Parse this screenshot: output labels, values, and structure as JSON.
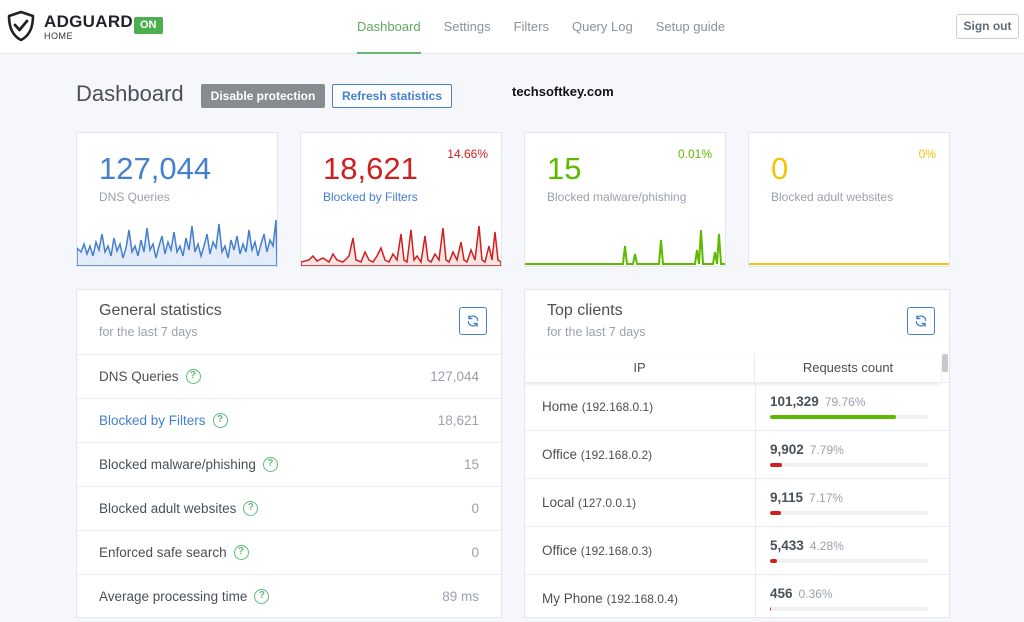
{
  "header": {
    "brand": "ADGUARD",
    "brand_sub": "HOME",
    "status_badge": "ON",
    "nav": [
      "Dashboard",
      "Settings",
      "Filters",
      "Query Log",
      "Setup guide"
    ],
    "signout": "Sign out"
  },
  "page": {
    "title": "Dashboard",
    "disable_btn": "Disable protection",
    "refresh_btn": "Refresh statistics",
    "watermark": "techsoftkey.com"
  },
  "cards": [
    {
      "value": "127,044",
      "label": "DNS Queries",
      "percent": "",
      "color": "#467fcf"
    },
    {
      "value": "18,621",
      "label": "Blocked by Filters",
      "percent": "14.66%",
      "color": "#cd201f"
    },
    {
      "value": "15",
      "label": "Blocked malware/phishing",
      "percent": "0.01%",
      "color": "#5eba00"
    },
    {
      "value": "0",
      "label": "Blocked adult websites",
      "percent": "0%",
      "color": "#f1c40f"
    }
  ],
  "general": {
    "title": "General statistics",
    "subtitle": "for the last 7 days",
    "rows": [
      {
        "label": "DNS Queries",
        "value": "127,044"
      },
      {
        "label": "Blocked by Filters",
        "value": "18,621"
      },
      {
        "label": "Blocked malware/phishing",
        "value": "15"
      },
      {
        "label": "Blocked adult websites",
        "value": "0"
      },
      {
        "label": "Enforced safe search",
        "value": "0"
      },
      {
        "label": "Average processing time",
        "value": "89 ms"
      }
    ]
  },
  "clients": {
    "title": "Top clients",
    "subtitle": "for the last 7 days",
    "col_ip": "IP",
    "col_count": "Requests count",
    "rows": [
      {
        "name": "Home",
        "ip": "(192.168.0.1)",
        "count": "101,329",
        "percent": "79.76%",
        "fill": 0.7976,
        "color": "#5eba00"
      },
      {
        "name": "Office",
        "ip": "(192.168.0.2)",
        "count": "9,902",
        "percent": "7.79%",
        "fill": 0.0779,
        "color": "#cd201f"
      },
      {
        "name": "Local",
        "ip": "(127.0.0.1)",
        "count": "9,115",
        "percent": "7.17%",
        "fill": 0.0717,
        "color": "#cd201f"
      },
      {
        "name": "Office",
        "ip": "(192.168.0.3)",
        "count": "5,433",
        "percent": "4.28%",
        "fill": 0.0428,
        "color": "#cd201f"
      },
      {
        "name": "My Phone",
        "ip": "(192.168.0.4)",
        "count": "456",
        "percent": "0.36%",
        "fill": 0.0036,
        "color": "#cd201f"
      }
    ]
  }
}
